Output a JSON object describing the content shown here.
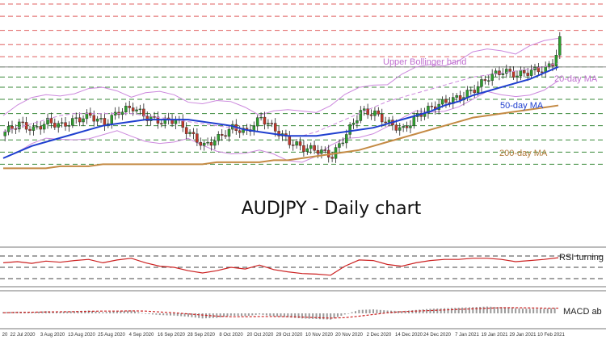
{
  "colors": {
    "candle_up": "#2e9e2e",
    "candle_down": "#c0392b",
    "ma20": "#cc88dd",
    "ma50": "#1f3fcf",
    "ma200": "#c48a44",
    "resistance": "#e06060",
    "support": "#3a8a3a",
    "rsi": "#cc2222",
    "macd_signal": "#cc2222",
    "macd_hist": "#9a9a9a"
  },
  "chart_data": {
    "type": "candlestick",
    "title": "AUDJPY - Daily chart",
    "annotations": {
      "bollinger": "Upper Bollinger band",
      "ma20": "20-day MA",
      "ma50": "50-day MA",
      "ma200": "200-day MA",
      "rsi": "RSI turning",
      "macd": "MACD ab"
    },
    "x_ticks": [
      "20",
      "22 Jul 2020",
      "3 Aug 2020",
      "13 Aug 2020",
      "25 Aug 2020",
      "4 Sep 2020",
      "16 Sep 2020",
      "28 Sep 2020",
      "8 Oct 2020",
      "20 Oct 2020",
      "29 Oct 2020",
      "10 Nov 2020",
      "20 Nov 2020",
      "2 Dec 2020",
      "14 Dec 2020",
      "24 Dec 2020",
      "7 Jan 2021",
      "19 Jan 2021",
      "29 Jan 2021",
      "10 Feb 2021"
    ],
    "y_range": [
      73.4,
      82.2
    ],
    "resistance_levels": [
      82.2,
      81.6,
      80.9,
      80.2,
      79.6
    ],
    "support_levels": [
      79.1,
      78.6,
      78.1,
      77.5,
      76.8,
      76.2,
      75.5,
      74.9,
      74.3
    ],
    "series": [
      {
        "name": "20-day MA",
        "type": "line",
        "values": [
          75.9,
          76.1,
          76.3,
          76.5,
          76.7,
          76.8,
          76.8,
          76.8,
          76.8,
          76.8,
          76.7,
          76.6,
          76.5,
          76.4,
          76.3,
          76.2,
          76.1,
          76.0,
          75.9,
          75.8,
          75.7,
          75.7,
          75.9,
          76.2,
          76.5,
          76.8,
          77.1,
          77.4,
          77.6,
          77.8,
          78.0,
          78.2,
          78.4,
          78.6,
          78.7,
          78.8,
          78.9,
          79.0,
          79.1,
          79.3
        ]
      },
      {
        "name": "50-day MA",
        "type": "line",
        "values": [
          74.6,
          74.9,
          75.2,
          75.4,
          75.6,
          75.8,
          76.0,
          76.2,
          76.3,
          76.4,
          76.5,
          76.5,
          76.5,
          76.5,
          76.4,
          76.3,
          76.2,
          76.0,
          75.9,
          75.8,
          75.7,
          75.7,
          75.7,
          75.8,
          75.9,
          76.0,
          76.1,
          76.3,
          76.5,
          76.7,
          76.9,
          77.2,
          77.4,
          77.7,
          77.9,
          78.1,
          78.3,
          78.5,
          78.8,
          79.1
        ]
      },
      {
        "name": "200-day MA",
        "type": "line",
        "values": [
          74.1,
          74.1,
          74.1,
          74.1,
          74.2,
          74.2,
          74.2,
          74.3,
          74.3,
          74.3,
          74.3,
          74.3,
          74.3,
          74.3,
          74.3,
          74.4,
          74.4,
          74.4,
          74.4,
          74.5,
          74.5,
          74.6,
          74.7,
          74.8,
          74.9,
          75.0,
          75.2,
          75.4,
          75.6,
          75.8,
          76.0,
          76.2,
          76.4,
          76.6,
          76.7,
          76.8,
          76.9,
          77.0,
          77.1,
          77.2
        ]
      },
      {
        "name": "candles_close",
        "type": "ohlc",
        "values": [
          75.9,
          76.3,
          76.0,
          76.4,
          76.2,
          76.5,
          76.7,
          76.3,
          76.9,
          77.1,
          76.6,
          76.4,
          76.5,
          75.8,
          75.2,
          75.6,
          76.1,
          75.9,
          76.6,
          76.0,
          75.4,
          75.1,
          75.0,
          74.7,
          75.8,
          76.9,
          76.8,
          76.3,
          76.0,
          76.7,
          77.1,
          77.4,
          77.6,
          78.0,
          78.6,
          78.9,
          78.7,
          78.9,
          79.0,
          79.6
        ]
      }
    ],
    "rsi": {
      "values": [
        58,
        60,
        57,
        61,
        59,
        62,
        64,
        58,
        63,
        66,
        58,
        52,
        50,
        44,
        40,
        44,
        50,
        47,
        54,
        46,
        42,
        39,
        38,
        36,
        52,
        63,
        62,
        55,
        52,
        58,
        62,
        64,
        64,
        66,
        66,
        64,
        60,
        62,
        64,
        67
      ],
      "levels": [
        70,
        50,
        30
      ]
    },
    "macd": {
      "hist": [
        0.1,
        0.15,
        0.1,
        0.2,
        0.15,
        0.2,
        0.25,
        0.1,
        0.2,
        0.25,
        -0.05,
        -0.15,
        -0.2,
        -0.3,
        -0.45,
        -0.4,
        -0.2,
        -0.25,
        -0.1,
        -0.25,
        -0.35,
        -0.45,
        -0.5,
        -0.55,
        -0.1,
        0.3,
        0.35,
        0.25,
        0.2,
        0.3,
        0.4,
        0.45,
        0.5,
        0.55,
        0.6,
        0.55,
        0.45,
        0.4,
        0.4,
        0.5
      ],
      "signal": [
        0.05,
        0.08,
        0.1,
        0.12,
        0.14,
        0.15,
        0.18,
        0.2,
        0.2,
        0.22,
        0.2,
        0.12,
        0.05,
        -0.05,
        -0.15,
        -0.25,
        -0.3,
        -0.3,
        -0.28,
        -0.28,
        -0.3,
        -0.33,
        -0.38,
        -0.42,
        -0.38,
        -0.25,
        -0.1,
        0.05,
        0.15,
        0.2,
        0.25,
        0.3,
        0.35,
        0.4,
        0.45,
        0.5,
        0.5,
        0.48,
        0.46,
        0.46
      ]
    }
  }
}
